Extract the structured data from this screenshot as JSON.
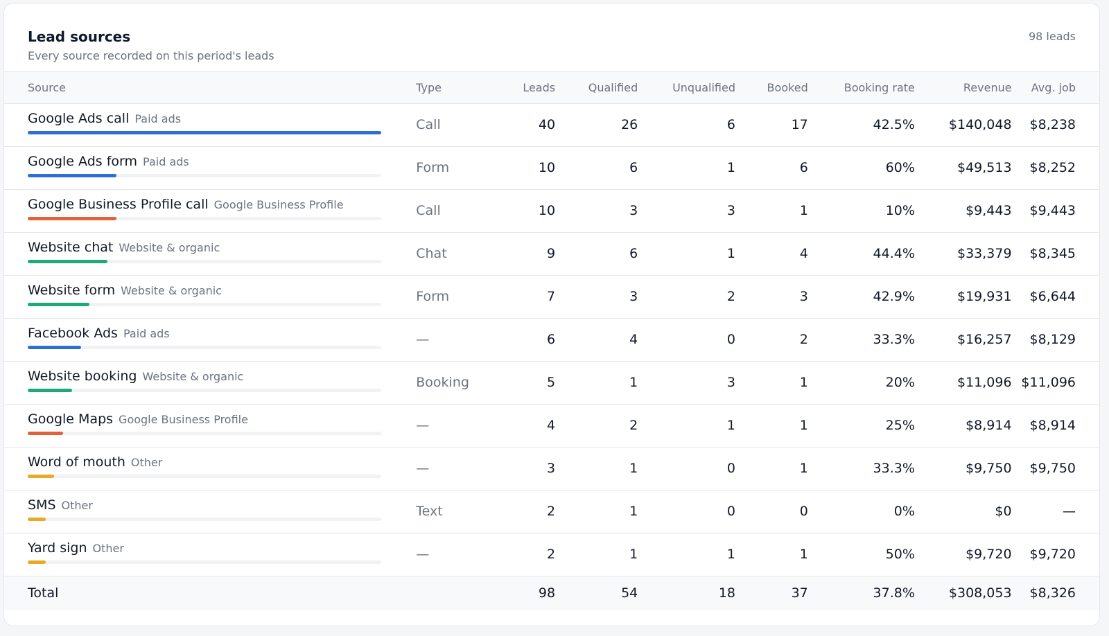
{
  "card": {
    "title": "Lead sources",
    "subtitle": "Every source recorded on this period's leads",
    "count": "98 leads"
  },
  "columns": {
    "source": "Source",
    "type": "Type",
    "leads": "Leads",
    "qualified": "Qualified",
    "unqualified": "Unqualified",
    "booked": "Booked",
    "booking_rate": "Booking rate",
    "revenue": "Revenue",
    "avg_job": "Avg. job"
  },
  "category_colors": {
    "Paid ads": "#2f6fd0",
    "Google Business Profile": "#e2603a",
    "Website & organic": "#1eaa78",
    "Other": "#e9a825"
  },
  "rows": [
    {
      "source": "Google Ads call",
      "category": "Paid ads",
      "type": "Call",
      "leads": "40",
      "qualified": "26",
      "unqualified": "6",
      "booked": "17",
      "booking_rate": "42.5%",
      "revenue": "$140,048",
      "avg_job": "$8,238",
      "share": 40
    },
    {
      "source": "Google Ads form",
      "category": "Paid ads",
      "type": "Form",
      "leads": "10",
      "qualified": "6",
      "unqualified": "1",
      "booked": "6",
      "booking_rate": "60%",
      "revenue": "$49,513",
      "avg_job": "$8,252",
      "share": 10
    },
    {
      "source": "Google Business Profile call",
      "category": "Google Business Profile",
      "type": "Call",
      "leads": "10",
      "qualified": "3",
      "unqualified": "3",
      "booked": "1",
      "booking_rate": "10%",
      "revenue": "$9,443",
      "avg_job": "$9,443",
      "share": 10
    },
    {
      "source": "Website chat",
      "category": "Website & organic",
      "type": "Chat",
      "leads": "9",
      "qualified": "6",
      "unqualified": "1",
      "booked": "4",
      "booking_rate": "44.4%",
      "revenue": "$33,379",
      "avg_job": "$8,345",
      "share": 9
    },
    {
      "source": "Website form",
      "category": "Website & organic",
      "type": "Form",
      "leads": "7",
      "qualified": "3",
      "unqualified": "2",
      "booked": "3",
      "booking_rate": "42.9%",
      "revenue": "$19,931",
      "avg_job": "$6,644",
      "share": 7
    },
    {
      "source": "Facebook Ads",
      "category": "Paid ads",
      "type": "—",
      "leads": "6",
      "qualified": "4",
      "unqualified": "0",
      "booked": "2",
      "booking_rate": "33.3%",
      "revenue": "$16,257",
      "avg_job": "$8,129",
      "share": 6
    },
    {
      "source": "Website booking",
      "category": "Website & organic",
      "type": "Booking",
      "leads": "5",
      "qualified": "1",
      "unqualified": "3",
      "booked": "1",
      "booking_rate": "20%",
      "revenue": "$11,096",
      "avg_job": "$11,096",
      "share": 5
    },
    {
      "source": "Google Maps",
      "category": "Google Business Profile",
      "type": "—",
      "leads": "4",
      "qualified": "2",
      "unqualified": "1",
      "booked": "1",
      "booking_rate": "25%",
      "revenue": "$8,914",
      "avg_job": "$8,914",
      "share": 4
    },
    {
      "source": "Word of mouth",
      "category": "Other",
      "type": "—",
      "leads": "3",
      "qualified": "1",
      "unqualified": "0",
      "booked": "1",
      "booking_rate": "33.3%",
      "revenue": "$9,750",
      "avg_job": "$9,750",
      "share": 3
    },
    {
      "source": "SMS",
      "category": "Other",
      "type": "Text",
      "leads": "2",
      "qualified": "1",
      "unqualified": "0",
      "booked": "0",
      "booking_rate": "0%",
      "revenue": "$0",
      "avg_job": "—",
      "share": 2
    },
    {
      "source": "Yard sign",
      "category": "Other",
      "type": "—",
      "leads": "2",
      "qualified": "1",
      "unqualified": "1",
      "booked": "1",
      "booking_rate": "50%",
      "revenue": "$9,720",
      "avg_job": "$9,720",
      "share": 2
    }
  ],
  "bar_max": 40,
  "total": {
    "label": "Total",
    "leads": "98",
    "qualified": "54",
    "unqualified": "18",
    "booked": "37",
    "booking_rate": "37.8%",
    "revenue": "$308,053",
    "avg_job": "$8,326"
  }
}
